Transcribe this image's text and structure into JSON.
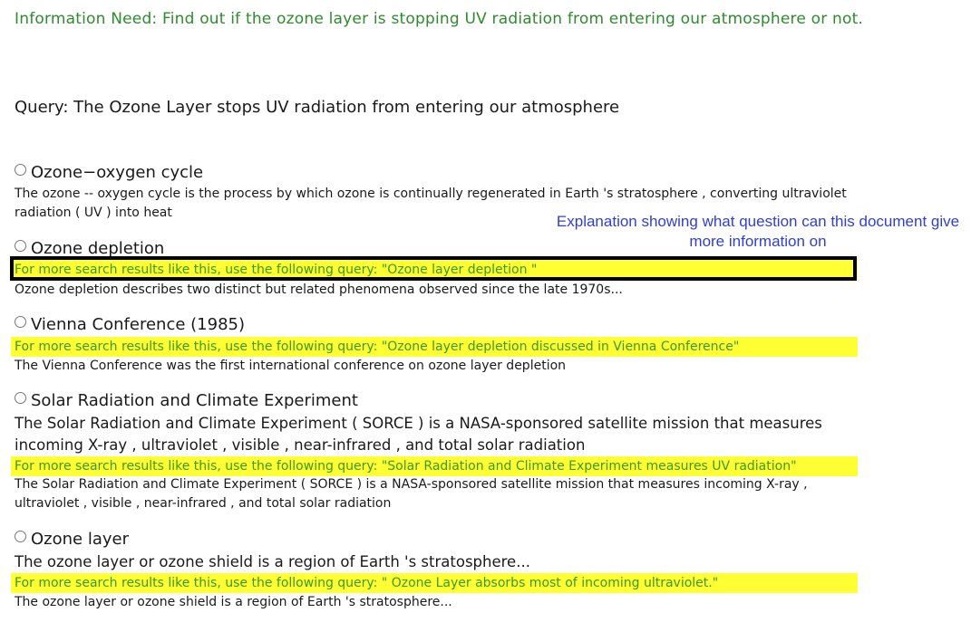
{
  "information_need": "Information Need: Find out if the ozone layer is stopping UV radiation from entering our atmosphere or not.",
  "query": "Query: The Ozone Layer stops UV radiation from entering our atmosphere",
  "annotation": "Explanation showing what question can this document give more information on",
  "results": [
    {
      "title": "Ozone−oxygen cycle",
      "snippet": "The ozone -- oxygen cycle is the process by which ozone is continually regenerated in Earth 's stratosphere , converting ultraviolet radiation ( UV ) into heat"
    },
    {
      "title": "Ozone depletion",
      "suggestion": "For more search results like this, use the following query: \"Ozone layer depletion \"",
      "snippet": "Ozone depletion describes two distinct but related phenomena observed since the late 1970s..."
    },
    {
      "title": "Vienna Conference (1985)",
      "suggestion": "For more search results like this, use the following query: \"Ozone layer depletion discussed in Vienna Conference\"",
      "snippet": "The Vienna Conference was the first international conference on ozone layer depletion"
    },
    {
      "title": "Solar Radiation and Climate Experiment",
      "summary": "The Solar Radiation and Climate Experiment ( SORCE ) is a NASA-sponsored satellite mission that measures incoming X-ray , ultraviolet , visible , near-infrared , and total solar radiation",
      "suggestion": "For more search results like this, use the following query: \"Solar Radiation and Climate Experiment measures UV radiation\"",
      "snippet": "The Solar Radiation and Climate Experiment ( SORCE ) is a NASA-sponsored satellite mission that measures incoming X-ray , ultraviolet , visible , near-infrared , and total solar radiation"
    },
    {
      "title": "Ozone layer",
      "summary": "The ozone layer or ozone shield is a region of Earth 's stratosphere...",
      "suggestion": "For more search results like this, use the following query: \" Ozone Layer absorbs most of incoming ultraviolet.\"",
      "snippet": "The ozone layer or ozone shield is a region of Earth 's stratosphere..."
    }
  ]
}
